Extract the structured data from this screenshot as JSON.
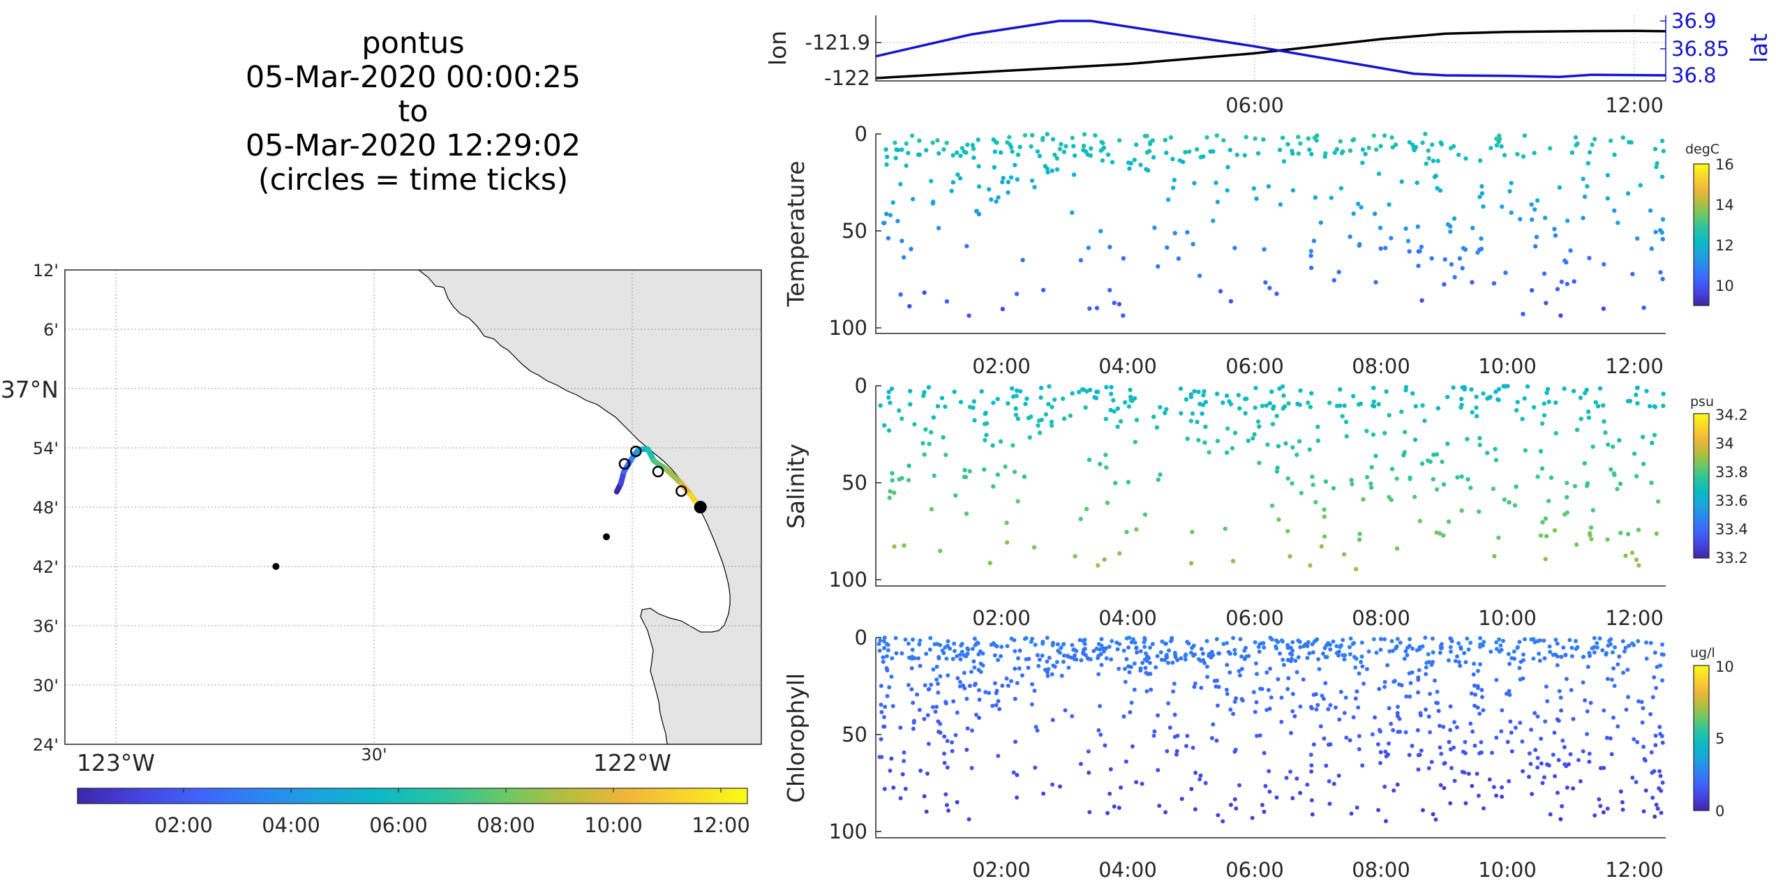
{
  "title": {
    "lines": [
      "pontus",
      "05-Mar-2020 00:00:25",
      "to",
      "05-Mar-2020 12:29:02",
      "(circles = time ticks)"
    ]
  },
  "colors": {
    "black": "#000000",
    "blue": "#1515d0",
    "land": "#e4e4e4",
    "grid": "#b0b0b0",
    "parula": [
      "#3e26a8",
      "#4443e0",
      "#3f63fb",
      "#2d84f2",
      "#1ca3de",
      "#0ab9c6",
      "#2bc49e",
      "#6cc864",
      "#b7bd3d",
      "#f0b63a",
      "#f9d62c",
      "#f9fb15"
    ]
  },
  "map": {
    "lat_labels": [
      "12'",
      "6'",
      "37°N",
      "54'",
      "48'",
      "42'",
      "36'",
      "30'",
      "24'"
    ],
    "lon_labels": [
      "123°W",
      "30'",
      "122°W"
    ],
    "colorbar_ticks": [
      "02:00",
      "04:00",
      "06:00",
      "08:00",
      "10:00",
      "12:00"
    ],
    "track": [
      {
        "lon": -122.03,
        "lat": 36.826
      },
      {
        "lon": -122.022,
        "lat": 36.84
      },
      {
        "lon": -122.016,
        "lat": 36.86
      },
      {
        "lon": -122.0,
        "lat": 36.883
      },
      {
        "lon": -121.988,
        "lat": 36.897
      },
      {
        "lon": -121.97,
        "lat": 36.898
      },
      {
        "lon": -121.958,
        "lat": 36.878
      },
      {
        "lon": -121.933,
        "lat": 36.863
      },
      {
        "lon": -121.905,
        "lat": 36.84
      },
      {
        "lon": -121.887,
        "lat": 36.821
      },
      {
        "lon": -121.875,
        "lat": 36.806
      },
      {
        "lon": -121.867,
        "lat": 36.8
      }
    ],
    "time_tick_circles": [
      {
        "lon": -122.015,
        "lat": 36.873
      },
      {
        "lon": -121.993,
        "lat": 36.894
      },
      {
        "lon": -121.95,
        "lat": 36.86
      },
      {
        "lon": -121.905,
        "lat": 36.827
      }
    ],
    "end_point": {
      "lon": -121.868,
      "lat": 36.8
    },
    "other_points": [
      {
        "lon": -122.05,
        "lat": 36.75
      },
      {
        "lon": -122.69,
        "lat": 36.7
      }
    ]
  },
  "chart_data": [
    {
      "type": "line",
      "ylabel_left": "lon",
      "ylabel_right": "lat",
      "x_tick_labels": [
        "06:00",
        "12:00"
      ],
      "left_ticks": [
        "-121.9",
        "-122"
      ],
      "right_ticks": [
        "36.9",
        "36.85",
        "36.8"
      ],
      "series": [
        {
          "name": "lon",
          "x_hours": [
            0,
            2,
            4,
            6,
            8,
            9,
            10,
            11,
            12,
            12.48
          ],
          "values": [
            -122.0,
            -121.98,
            -121.96,
            -121.93,
            -121.89,
            -121.875,
            -121.87,
            -121.868,
            -121.867,
            -121.868
          ]
        },
        {
          "name": "lat",
          "x_hours": [
            0,
            1.5,
            2.9,
            3.4,
            6,
            8.5,
            9,
            10,
            10.8,
            11.3,
            12.48
          ],
          "values": [
            36.835,
            36.875,
            36.9,
            36.9,
            36.853,
            36.803,
            36.8,
            36.799,
            36.797,
            36.801,
            36.8
          ]
        }
      ]
    },
    {
      "type": "scatter",
      "ylabel": "Temperature",
      "unit": "degC",
      "ylim": [
        0,
        100
      ],
      "clim": [
        9,
        16
      ],
      "cb_ticks": [
        "16",
        "14",
        "12",
        "10"
      ],
      "x_tick_labels": [
        "02:00",
        "04:00",
        "06:00",
        "08:00",
        "10:00",
        "12:00"
      ],
      "y_ticks": [
        "0",
        "50",
        "100"
      ]
    },
    {
      "type": "scatter",
      "ylabel": "Salinity",
      "unit": "psu",
      "ylim": [
        0,
        100
      ],
      "clim": [
        33.2,
        34.2
      ],
      "cb_ticks": [
        "34.2",
        "34",
        "33.8",
        "33.6",
        "33.4",
        "33.2"
      ],
      "x_tick_labels": [
        "02:00",
        "04:00",
        "06:00",
        "08:00",
        "10:00",
        "12:00"
      ],
      "y_ticks": [
        "0",
        "50",
        "100"
      ]
    },
    {
      "type": "scatter",
      "ylabel": "Chlorophyll",
      "unit": "ug/l",
      "ylim": [
        0,
        100
      ],
      "clim": [
        0,
        10
      ],
      "cb_ticks": [
        "10",
        "5",
        "0"
      ],
      "x_tick_labels": [
        "02:00",
        "04:00",
        "06:00",
        "08:00",
        "10:00",
        "12:00"
      ],
      "y_ticks": [
        "0",
        "50",
        "100"
      ]
    }
  ]
}
